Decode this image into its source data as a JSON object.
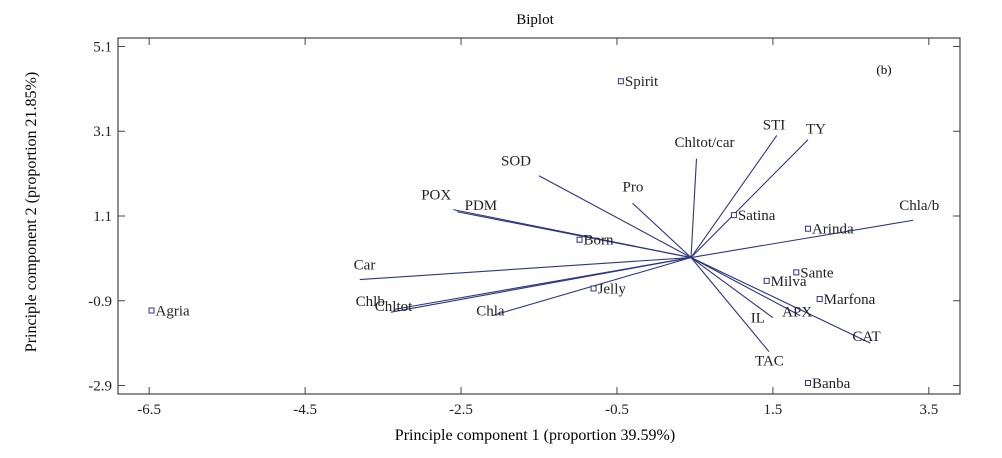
{
  "chart_data": {
    "type": "scatter",
    "title": "Biplot",
    "panel_label": "(b)",
    "xlabel": "Principle component 1 (proportion 39.59%)",
    "ylabel": "Principle component 2 (proportion 21.85%)",
    "xlim": [
      -6.9,
      3.9
    ],
    "ylim": [
      -3.1,
      5.3
    ],
    "xticks": [
      "-6.5",
      "-4.5",
      "-2.5",
      "-0.5",
      "1.5",
      "3.5"
    ],
    "yticks": [
      "5.1",
      "3.1",
      "1.1",
      "-0.9",
      "-2.9"
    ],
    "xtick_values": [
      -6.5,
      -4.5,
      -2.5,
      -0.5,
      1.5,
      3.5
    ],
    "ytick_values": [
      5.1,
      3.1,
      1.1,
      -0.9,
      -2.9
    ],
    "colors": {
      "vector": "#2d3680",
      "marker": "#2d3680",
      "frame": "#444444",
      "text": "#222222"
    },
    "origin": [
      0.45,
      0.12
    ],
    "points": [
      {
        "name": "Spirit",
        "x": -0.45,
        "y": 4.28
      },
      {
        "name": "Satina",
        "x": 1.0,
        "y": 1.12
      },
      {
        "name": "Arinda",
        "x": 1.95,
        "y": 0.8
      },
      {
        "name": "Born",
        "x": -0.98,
        "y": 0.54
      },
      {
        "name": "Sante",
        "x": 1.8,
        "y": -0.23
      },
      {
        "name": "Milva",
        "x": 1.42,
        "y": -0.43
      },
      {
        "name": "Jelly",
        "x": -0.8,
        "y": -0.61
      },
      {
        "name": "Marfona",
        "x": 2.1,
        "y": -0.86
      },
      {
        "name": "Agria",
        "x": -6.47,
        "y": -1.13
      },
      {
        "name": "Banba",
        "x": 1.95,
        "y": -2.84
      }
    ],
    "vectors": [
      {
        "name": "SOD",
        "x": -1.5,
        "y": 2.05
      },
      {
        "name": "POX",
        "x": -2.6,
        "y": 1.25
      },
      {
        "name": "PDM",
        "x": -2.55,
        "y": 1.2
      },
      {
        "name": "Pro",
        "x": -0.3,
        "y": 1.4
      },
      {
        "name": "Chltot/car",
        "x": 0.52,
        "y": 2.45
      },
      {
        "name": "STI",
        "x": 1.55,
        "y": 3.0
      },
      {
        "name": "TY",
        "x": 1.95,
        "y": 2.9
      },
      {
        "name": "Chla/b",
        "x": 3.3,
        "y": 1.0
      },
      {
        "name": "Car",
        "x": -3.8,
        "y": -0.4
      },
      {
        "name": "Chlb",
        "x": -3.4,
        "y": -1.17
      },
      {
        "name": "Chltot",
        "x": -3.35,
        "y": -1.1
      },
      {
        "name": "Chla",
        "x": -2.1,
        "y": -1.25
      },
      {
        "name": "APX",
        "x": 1.85,
        "y": -1.25
      },
      {
        "name": "IL",
        "x": 1.5,
        "y": -1.3
      },
      {
        "name": "TAC",
        "x": 1.45,
        "y": -2.1
      },
      {
        "name": "CAT",
        "x": 2.75,
        "y": -1.9
      }
    ]
  }
}
